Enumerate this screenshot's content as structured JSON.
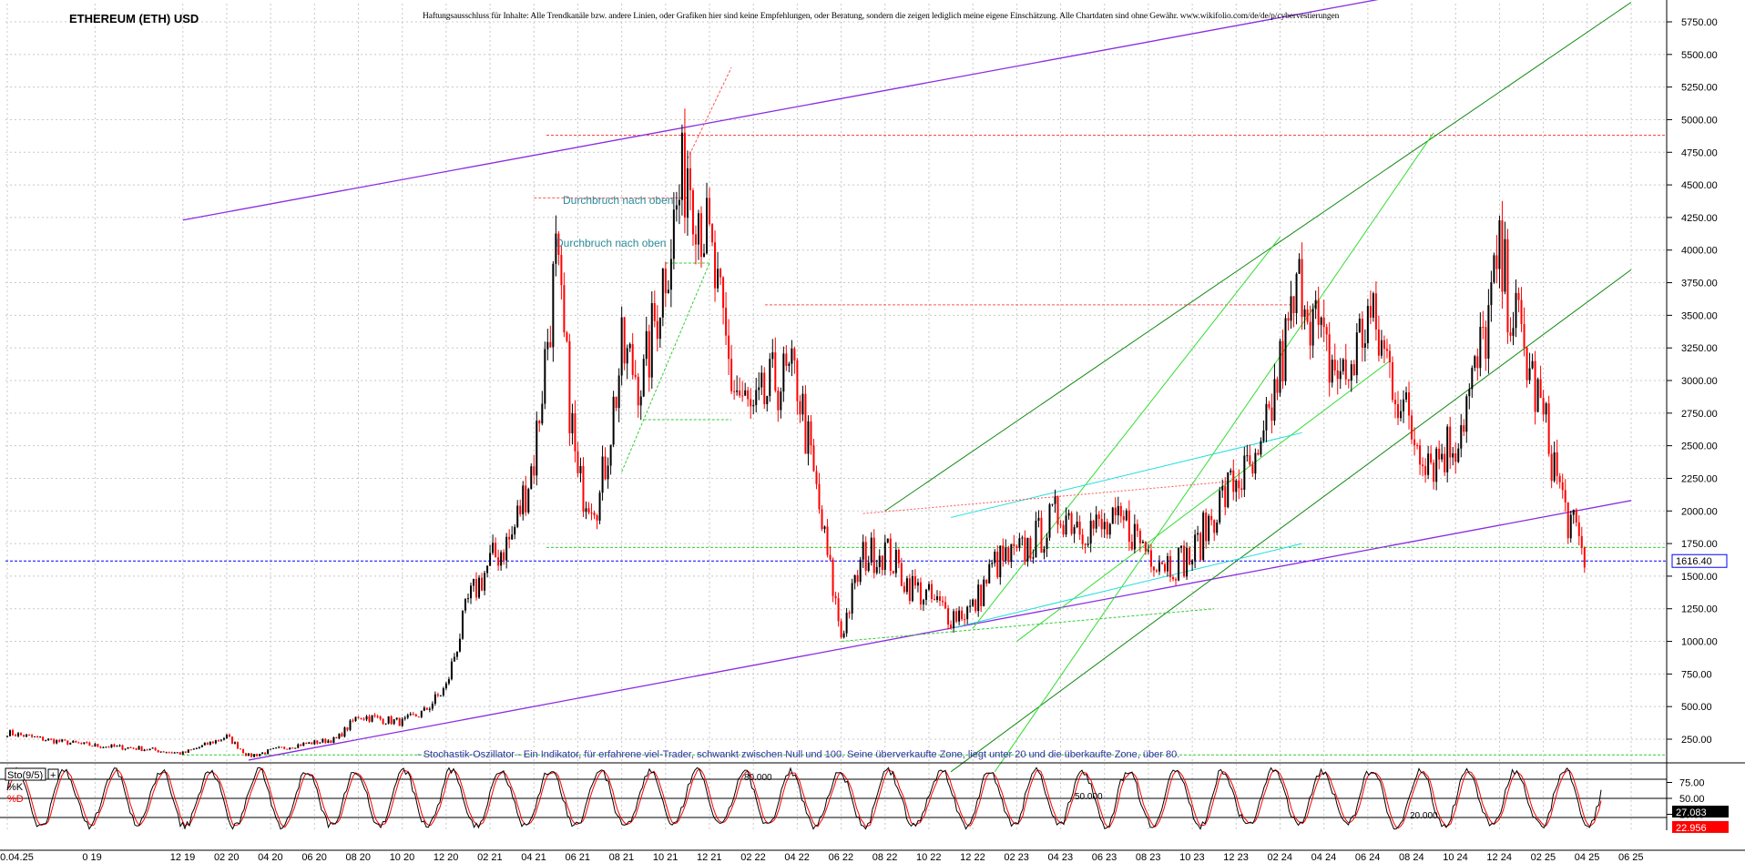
{
  "header": {
    "title": "ETHEREUM (ETH) USD",
    "disclaimer": "Haftungsausschluss für Inhalte: Alle Trendkanäle bzw. andere Linien, oder Grafiken hier sind keine Empfehlungen, oder Beratung, sondern die zeigen lediglich meine eigene Einschätzung. Alle Chartdaten sind ohne Gewähr. www.wikifolio.com/de/de/p/cybervestierungen"
  },
  "annotations": {
    "breakout_1": "Durchbruch nach oben",
    "breakout_2": "Durchbruch nach oben",
    "stochastic_note": "- Stochastik-Oszillator - Ein Indikator, für erfahrene viel-Trader, schwankt zwischen Null und 100. Seine überverkaufte Zone, liegt unter 20 und die überkaufte Zone, über 80.",
    "level_80": "80.000",
    "level_50": "50.000",
    "level_20": "20.000"
  },
  "colors": {
    "background": "#ffffff",
    "grid": "#c8c8c8",
    "candle_up": "#000000",
    "candle_down": "#ff0000",
    "channel_purple": "#8a2be2",
    "trend_green_dark": "#118811",
    "trend_green_light": "#33dd33",
    "trend_cyan": "#22dddd",
    "current_price_line": "#0000ff",
    "sto_k": "#000000",
    "sto_d": "#ff0000",
    "annotation_teal": "#2a8a9a",
    "note_blue": "#3333aa"
  },
  "chart_data": [
    {
      "type": "candlestick",
      "title": "ETHEREUM (ETH) USD",
      "y_ticks": [
        "250.00",
        "500.00",
        "750.00",
        "1000.00",
        "1250.00",
        "1500.00",
        "1750.00",
        "2000.00",
        "2250.00",
        "2500.00",
        "2750.00",
        "3000.00",
        "3250.00",
        "3500.00",
        "3750.00",
        "4000.00",
        "4250.00",
        "4500.00",
        "4750.00",
        "5000.00",
        "5250.00",
        "5500.00",
        "5750.00"
      ],
      "ylim": [
        0,
        5900
      ],
      "x_ticks": [
        "10.04.25",
        "0 19",
        "12 19",
        "02 20",
        "04 20",
        "06 20",
        "08 20",
        "10 20",
        "12 20",
        "02 21",
        "04 21",
        "06 21",
        "08 21",
        "10 21",
        "12 21",
        "02 22",
        "04 22",
        "06 22",
        "08 22",
        "10 22",
        "12 22",
        "02 23",
        "04 23",
        "06 23",
        "08 23",
        "10 23",
        "12 23",
        "02 24",
        "04 24",
        "06 24",
        "08 24",
        "10 24",
        "12 24",
        "02 25",
        "04 25",
        "06 25"
      ],
      "x_tick_dates": [
        "2019-04",
        "2019-08",
        "2019-12",
        "2020-02",
        "2020-04",
        "2020-06",
        "2020-08",
        "2020-10",
        "2020-12",
        "2021-02",
        "2021-04",
        "2021-06",
        "2021-08",
        "2021-10",
        "2021-12",
        "2022-02",
        "2022-04",
        "2022-06",
        "2022-08",
        "2022-10",
        "2022-12",
        "2023-02",
        "2023-04",
        "2023-06",
        "2023-08",
        "2023-10",
        "2023-12",
        "2024-02",
        "2024-04",
        "2024-06",
        "2024-08",
        "2024-10",
        "2024-12",
        "2025-02",
        "2025-04",
        "2025-06"
      ],
      "last_price_label": "1616.40",
      "last_price": 1616.4,
      "series": [
        {
          "name": "",
          "x": [
            "2019-04",
            "2019-06",
            "2019-08",
            "2019-10",
            "2019-12",
            "2020-02",
            "2020-03",
            "2020-05",
            "2020-07",
            "2020-08",
            "2020-10",
            "2020-11",
            "2020-12",
            "2021-01",
            "2021-02",
            "2021-03",
            "2021-04",
            "2021-05",
            "2021-06",
            "2021-07",
            "2021-08",
            "2021-09",
            "2021-10",
            "2021-11",
            "2021-12",
            "2022-01",
            "2022-02",
            "2022-03",
            "2022-04",
            "2022-05",
            "2022-06",
            "2022-07",
            "2022-08",
            "2022-09",
            "2022-10",
            "2022-11",
            "2022-12",
            "2023-01",
            "2023-02",
            "2023-03",
            "2023-04",
            "2023-05",
            "2023-06",
            "2023-07",
            "2023-08",
            "2023-09",
            "2023-10",
            "2023-11",
            "2023-12",
            "2024-01",
            "2024-02",
            "2024-03",
            "2024-04",
            "2024-05",
            "2024-06",
            "2024-07",
            "2024-08",
            "2024-09",
            "2024-10",
            "2024-11",
            "2024-12",
            "2025-01",
            "2025-02",
            "2025-03",
            "2025-04"
          ],
          "values": [
            300,
            240,
            200,
            180,
            140,
            270,
            120,
            200,
            250,
            430,
            380,
            460,
            650,
            1300,
            1600,
            1800,
            2400,
            3900,
            2200,
            2100,
            3200,
            3000,
            3900,
            4700,
            4000,
            3000,
            2700,
            3000,
            3000,
            2000,
            1050,
            1650,
            1700,
            1450,
            1330,
            1200,
            1250,
            1600,
            1650,
            1800,
            2000,
            1900,
            1850,
            1900,
            1700,
            1600,
            1650,
            2000,
            2250,
            2300,
            3100,
            3800,
            3200,
            3000,
            3500,
            3100,
            2600,
            2400,
            2550,
            3100,
            3900,
            3300,
            2700,
            2000,
            1600
          ],
          "note": "approximate closing values"
        }
      ],
      "trendlines": [
        {
          "kind": "channel",
          "color": "purple",
          "from": [
            "2020-03",
            90
          ],
          "to": [
            "2025-06",
            2080
          ]
        },
        {
          "kind": "channel",
          "color": "purple",
          "from": [
            "2019-12",
            4230
          ],
          "to": [
            "2024-09",
            6000
          ]
        },
        {
          "kind": "trend",
          "color": "green",
          "from": [
            "2022-08",
            2000
          ],
          "to": [
            "2025-06",
            5900
          ]
        },
        {
          "kind": "trend",
          "color": "green",
          "from": [
            "2022-11",
            0
          ],
          "to": [
            "2025-06",
            3850
          ]
        }
      ],
      "reference_levels": [
        4880,
        3580,
        1720,
        1616.4,
        130
      ]
    },
    {
      "type": "line",
      "title": "Sto(9/5)",
      "legend": [
        "%K",
        "%D"
      ],
      "y_ticks": [
        "75.00",
        "50.00",
        "25.00"
      ],
      "ylim": [
        0,
        100
      ],
      "levels": [
        80,
        50,
        20
      ],
      "last_values_label": [
        "27.083",
        "22.956"
      ],
      "last_values": {
        "%K": 27.083,
        "%D": 22.956
      }
    }
  ]
}
